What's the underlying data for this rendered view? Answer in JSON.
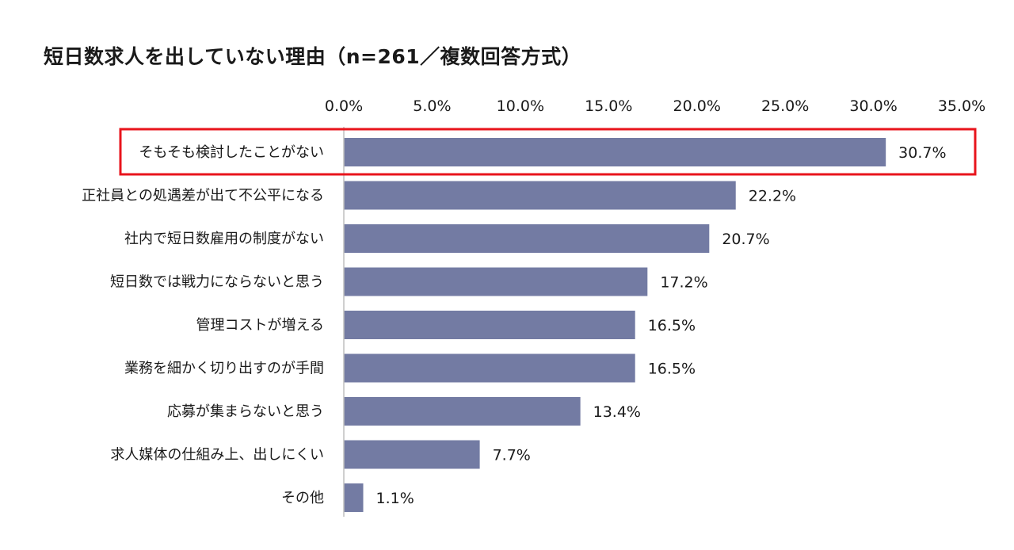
{
  "chart_data": {
    "type": "bar",
    "orientation": "horizontal",
    "title": "短日数求人を出していない理由（n=261／複数回答方式）",
    "categories": [
      "そもそも検討したことがない",
      "正社員との処遇差が出て不公平になる",
      "社内で短日数雇用の制度がない",
      "短日数では戦力にならないと思う",
      "管理コストが増える",
      "業務を細かく切り出すのが手間",
      "応募が集まらないと思う",
      "求人媒体の仕組み上、出しにくい",
      "その他"
    ],
    "values": [
      30.7,
      22.2,
      20.7,
      17.2,
      16.5,
      16.5,
      13.4,
      7.7,
      1.1
    ],
    "value_labels": [
      "30.7%",
      "22.2%",
      "20.7%",
      "17.2%",
      "16.5%",
      "16.5%",
      "13.4%",
      "7.7%",
      "1.1%"
    ],
    "xlim": [
      0,
      35
    ],
    "xticks": [
      0,
      5,
      10,
      15,
      20,
      25,
      30,
      35
    ],
    "xtick_labels": [
      "0.0%",
      "5.0%",
      "10.0%",
      "15.0%",
      "20.0%",
      "25.0%",
      "30.0%",
      "35.0%"
    ],
    "xaxis_position": "top",
    "grid": false,
    "highlighted_category_index": 0,
    "colors": {
      "bar": "#737ba3",
      "highlight": "#e8141c",
      "axis": "#bfbfbf"
    }
  }
}
